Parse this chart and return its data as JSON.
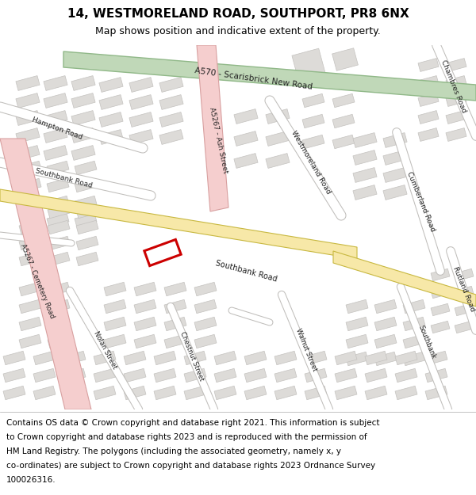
{
  "title": "14, WESTMORELAND ROAD, SOUTHPORT, PR8 6NX",
  "subtitle": "Map shows position and indicative extent of the property.",
  "footer": "Contains OS data © Crown copyright and database right 2021. This information is subject to Crown copyright and database rights 2023 and is reproduced with the permission of HM Land Registry. The polygons (including the associated geometry, namely x, y co-ordinates) are subject to Crown copyright and database rights 2023 Ordnance Survey 100026316.",
  "map_bg": "#f0eeeb",
  "building_fill": "#dddbd8",
  "building_outline": "#c4c2bf",
  "a_road_pink_fill": "#f5cece",
  "a_road_pink_outline": "#d8a0a0",
  "a570_green_fill": "#c0d8b8",
  "a570_green_outline": "#90b888",
  "yellow_fill": "#f7e8a8",
  "yellow_outline": "#c8b840",
  "white_road": "#ffffff",
  "white_road_edge": "#c0bebb",
  "property_red": "#cc0000",
  "label_color": "#222222",
  "title_color": "#000000",
  "footer_color": "#000000"
}
